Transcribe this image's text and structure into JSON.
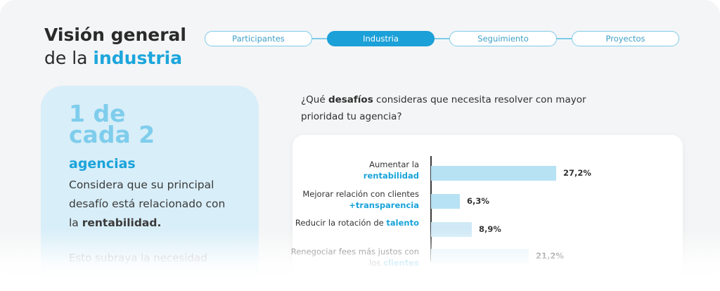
{
  "title": {
    "line1": "Visión general",
    "line2_prefix": "de la ",
    "line2_accent": "industria"
  },
  "tabs": [
    {
      "label": "Participantes",
      "active": false
    },
    {
      "label": "Industria",
      "active": true
    },
    {
      "label": "Seguimiento",
      "active": false
    },
    {
      "label": "Proyectos",
      "active": false
    }
  ],
  "stat": {
    "big_line1": "1 de",
    "big_line2": "cada 2",
    "agencias": "agencias",
    "desc_prefix": "Considera que su principal desafío está relacionado con la ",
    "desc_strong": "rentabilidad.",
    "note": "Esto subraya la necesidad"
  },
  "question": {
    "prefix": "¿Qué ",
    "strong": "desafíos",
    "suffix": " consideras que necesita resolver con mayor prioridad tu agencia?"
  },
  "chart_data": {
    "type": "bar",
    "orientation": "horizontal",
    "categories": [
      "Aumentar la rentabilidad",
      "Mejorar relación con clientes +transparencia",
      "Reducir la rotación de talento",
      "Renegociar fees más justos con los clientes"
    ],
    "values": [
      27.2,
      6.3,
      8.9,
      21.2
    ],
    "value_labels": [
      "27,2%",
      "6,3%",
      "8,9%",
      "21,2%"
    ],
    "units": "%",
    "xlim": [
      0,
      30
    ],
    "label_parts": [
      {
        "plain": "Aumentar la",
        "highlight": "rentabilidad"
      },
      {
        "plain": "Mejorar relación con clientes ",
        "highlight": "+transparencia"
      },
      {
        "plain": "Reducir la rotación de ",
        "highlight": "talento"
      },
      {
        "plain": "Renegociar fees más justos con los ",
        "highlight": "clientes"
      }
    ]
  },
  "colors": {
    "accent": "#1aa3da",
    "bar": "#b6e2f4",
    "tab_active": "#1ba0d8",
    "stat_card": "#d8eef8"
  }
}
